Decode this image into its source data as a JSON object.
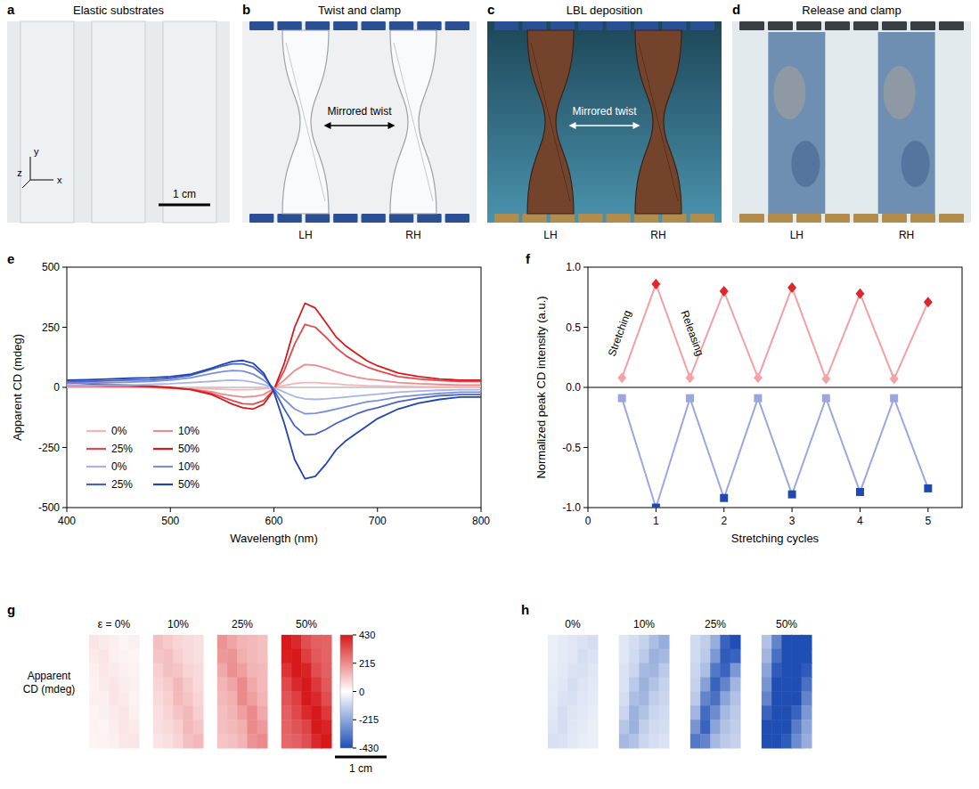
{
  "photos": [
    {
      "panel": "a",
      "title": "Elastic substrates",
      "scale_bar": "1 cm",
      "axes": [
        "x",
        "y",
        "z"
      ]
    },
    {
      "panel": "b",
      "title": "Twist and clamp",
      "annotation": "Mirrored twist",
      "labels": [
        "LH",
        "RH"
      ]
    },
    {
      "panel": "c",
      "title": "LBL deposition",
      "annotation": "Mirrored twist",
      "labels": [
        "LH",
        "RH"
      ]
    },
    {
      "panel": "d",
      "title": "Release and clamp",
      "labels": [
        "LH",
        "RH"
      ]
    }
  ],
  "chart_data": [
    {
      "panel": "e",
      "type": "line",
      "x_label": "Wavelength (nm)",
      "y_label": "Apparent CD (mdeg)",
      "x": [
        400,
        420,
        440,
        460,
        480,
        500,
        520,
        540,
        550,
        560,
        570,
        580,
        590,
        600,
        610,
        620,
        630,
        640,
        650,
        660,
        670,
        680,
        690,
        700,
        720,
        740,
        760,
        780,
        800
      ],
      "xlim": [
        400,
        800
      ],
      "xticks": [
        400,
        500,
        600,
        700,
        800
      ],
      "ylim": [
        -500,
        500
      ],
      "yticks": [
        -500,
        -250,
        0,
        250,
        500
      ],
      "legend": "lower left",
      "series": [
        {
          "name": "0%",
          "color": "#f5b4b6",
          "values": [
            0,
            0,
            0,
            0,
            0,
            -2,
            -4,
            -6,
            -8,
            -10,
            -10,
            -9,
            -6,
            0,
            8,
            16,
            20,
            20,
            17,
            14,
            11,
            9,
            7,
            6,
            4,
            3,
            2,
            2,
            2
          ]
        },
        {
          "name": "10%",
          "color": "#ee8a8d",
          "values": [
            5,
            4,
            3,
            2,
            0,
            -3,
            -8,
            -18,
            -28,
            -35,
            -40,
            -38,
            -30,
            -5,
            30,
            70,
            95,
            92,
            80,
            65,
            52,
            42,
            35,
            30,
            20,
            15,
            12,
            10,
            10
          ]
        },
        {
          "name": "25%",
          "color": "#e4484c",
          "values": [
            10,
            8,
            6,
            5,
            2,
            -2,
            -8,
            -25,
            -40,
            -55,
            -68,
            -70,
            -55,
            -10,
            70,
            180,
            262,
            250,
            210,
            165,
            130,
            105,
            85,
            70,
            45,
            35,
            28,
            25,
            25
          ]
        },
        {
          "name": "50%",
          "color": "#d7191c",
          "values": [
            20,
            15,
            12,
            10,
            5,
            0,
            -10,
            -30,
            -50,
            -70,
            -85,
            -90,
            -70,
            -10,
            100,
            250,
            350,
            330,
            270,
            210,
            170,
            140,
            110,
            90,
            60,
            45,
            35,
            30,
            30
          ]
        },
        {
          "name": "0%",
          "color": "#a9b3e6",
          "values": [
            10,
            8,
            10,
            10,
            12,
            15,
            20,
            25,
            28,
            30,
            28,
            22,
            12,
            0,
            -20,
            -38,
            -48,
            -50,
            -48,
            -44,
            -40,
            -36,
            -32,
            -28,
            -20,
            -15,
            -12,
            -10,
            -10
          ]
        },
        {
          "name": "10%",
          "color": "#7b8ed8",
          "values": [
            20,
            18,
            20,
            22,
            25,
            30,
            40,
            58,
            65,
            70,
            68,
            55,
            30,
            -5,
            -50,
            -90,
            -110,
            -108,
            -100,
            -90,
            -80,
            -70,
            -60,
            -55,
            -40,
            -32,
            -25,
            -20,
            -20
          ]
        },
        {
          "name": "25%",
          "color": "#4863c6",
          "values": [
            25,
            25,
            27,
            30,
            32,
            38,
            50,
            75,
            88,
            98,
            98,
            85,
            50,
            -10,
            -90,
            -160,
            -198,
            -195,
            -175,
            -150,
            -130,
            -110,
            -95,
            -85,
            -60,
            -45,
            -35,
            -30,
            -30
          ]
        },
        {
          "name": "50%",
          "color": "#1f44b0",
          "values": [
            30,
            32,
            35,
            38,
            40,
            45,
            55,
            80,
            95,
            108,
            112,
            100,
            60,
            -20,
            -150,
            -300,
            -380,
            -370,
            -320,
            -260,
            -220,
            -190,
            -160,
            -130,
            -90,
            -65,
            -50,
            -40,
            -40
          ]
        }
      ]
    },
    {
      "panel": "f",
      "type": "line",
      "x_label": "Stretching cycles",
      "y_label": "Normalized peak CD intensity (a.u.)",
      "annotations": [
        "Stretching",
        "Releasing"
      ],
      "x": [
        0.5,
        1,
        1.5,
        2,
        2.5,
        3,
        3.5,
        4,
        4.5,
        5
      ],
      "xlim": [
        0,
        5.5
      ],
      "xticks": [
        0,
        1,
        2,
        3,
        4,
        5
      ],
      "ylim": [
        -1,
        1
      ],
      "yticks": [
        {
          "value": -1,
          "label": "-1.0"
        },
        -0.5,
        {
          "value": 0,
          "label": "0.0"
        },
        0.5,
        {
          "value": 1,
          "label": "1.0"
        }
      ],
      "series": [
        {
          "color": "#f4a0a3",
          "marker": "diamond",
          "colors": [
            "#f5a3a5",
            "#e0262b",
            "#f5a3a5",
            "#e0262b",
            "#f5a3a5",
            "#e0262b",
            "#f5a3a5",
            "#e0262b",
            "#f5a3a5",
            "#e0262b"
          ],
          "values": [
            0.08,
            0.86,
            0.08,
            0.8,
            0.08,
            0.83,
            0.07,
            0.78,
            0.07,
            0.71
          ]
        },
        {
          "color": "#9aa8e0",
          "marker": "square",
          "colors": [
            "#9aa6dd",
            "#2049b0",
            "#9aa6dd",
            "#2049b0",
            "#9aa6dd",
            "#2049b0",
            "#9aa6dd",
            "#2049b0",
            "#9aa6dd",
            "#2049b0"
          ],
          "values": [
            -0.09,
            -1.0,
            -0.09,
            -0.92,
            -0.09,
            -0.89,
            -0.09,
            -0.87,
            -0.09,
            -0.84
          ]
        }
      ]
    },
    {
      "panel": "g",
      "type": "heatmap",
      "row_label": "Apparent CD (mdeg)",
      "maps": [
        {
          "label": "ε = 0%",
          "cells": [
            [
              50,
              40,
              30,
              20,
              30
            ],
            [
              40,
              50,
              30,
              25,
              20
            ],
            [
              30,
              45,
              40,
              30,
              25
            ],
            [
              25,
              40,
              50,
              35,
              30
            ],
            [
              30,
              30,
              50,
              40,
              25
            ],
            [
              20,
              30,
              40,
              50,
              30
            ],
            [
              25,
              20,
              35,
              50,
              40
            ],
            [
              20,
              25,
              30,
              45,
              50
            ]
          ]
        },
        {
          "label": "10%",
          "cells": [
            [
              120,
              100,
              80,
              70,
              60
            ],
            [
              110,
              120,
              90,
              70,
              60
            ],
            [
              90,
              120,
              110,
              80,
              70
            ],
            [
              80,
              100,
              130,
              100,
              70
            ],
            [
              70,
              90,
              130,
              110,
              80
            ],
            [
              60,
              80,
              110,
              130,
              90
            ],
            [
              60,
              70,
              90,
              130,
              110
            ],
            [
              50,
              60,
              80,
              120,
              130
            ]
          ]
        },
        {
          "label": "25%",
          "cells": [
            [
              200,
              170,
              140,
              130,
              120
            ],
            [
              190,
              200,
              150,
              130,
              120
            ],
            [
              160,
              210,
              180,
              140,
              130
            ],
            [
              140,
              170,
              220,
              160,
              130
            ],
            [
              130,
              150,
              220,
              180,
              140
            ],
            [
              120,
              140,
              180,
              220,
              160
            ],
            [
              120,
              130,
              150,
              220,
              190
            ],
            [
              110,
              120,
              140,
              200,
              220
            ]
          ]
        },
        {
          "label": "50%",
          "cells": [
            [
              430,
              400,
              330,
              300,
              290
            ],
            [
              420,
              430,
              360,
              310,
              290
            ],
            [
              380,
              430,
              410,
              330,
              300
            ],
            [
              340,
              400,
              430,
              370,
              310
            ],
            [
              320,
              360,
              430,
              400,
              330
            ],
            [
              300,
              340,
              400,
              430,
              370
            ],
            [
              290,
              320,
              350,
              430,
              410
            ],
            [
              280,
              300,
              330,
              400,
              430
            ]
          ]
        }
      ],
      "colorbar": {
        "range": [
          -430,
          430
        ],
        "ticks": [
          430,
          215,
          0,
          -215,
          -430
        ]
      },
      "scale_bar": "1 cm"
    },
    {
      "panel": "h",
      "type": "heatmap",
      "maps": [
        {
          "label": "0%",
          "cells": [
            [
              -40,
              -50,
              -60,
              -70,
              -80
            ],
            [
              -40,
              -50,
              -60,
              -80,
              -70
            ],
            [
              -45,
              -55,
              -70,
              -75,
              -60
            ],
            [
              -50,
              -60,
              -80,
              -65,
              -55
            ],
            [
              -50,
              -70,
              -75,
              -60,
              -50
            ],
            [
              -55,
              -80,
              -65,
              -55,
              -45
            ],
            [
              -65,
              -80,
              -60,
              -50,
              -40
            ],
            [
              -75,
              -70,
              -55,
              -45,
              -40
            ]
          ]
        },
        {
          "label": "10%",
          "cells": [
            [
              -60,
              -80,
              -110,
              -160,
              -200
            ],
            [
              -60,
              -90,
              -130,
              -190,
              -170
            ],
            [
              -70,
              -100,
              -170,
              -180,
              -130
            ],
            [
              -70,
              -130,
              -190,
              -150,
              -110
            ],
            [
              -80,
              -160,
              -180,
              -120,
              -100
            ],
            [
              -100,
              -190,
              -150,
              -100,
              -90
            ],
            [
              -140,
              -190,
              -120,
              -90,
              -80
            ],
            [
              -170,
              -150,
              -100,
              -80,
              -70
            ]
          ]
        },
        {
          "label": "25%",
          "cells": [
            [
              -90,
              -120,
              -200,
              -380,
              -430
            ],
            [
              -90,
              -130,
              -250,
              -400,
              -380
            ],
            [
              -100,
              -160,
              -330,
              -380,
              -250
            ],
            [
              -110,
              -230,
              -380,
              -300,
              -180
            ],
            [
              -130,
              -300,
              -350,
              -220,
              -150
            ],
            [
              -180,
              -360,
              -280,
              -170,
              -130
            ],
            [
              -260,
              -380,
              -220,
              -150,
              -120
            ],
            [
              -330,
              -300,
              -170,
              -130,
              -110
            ]
          ]
        },
        {
          "label": "50%",
          "cells": [
            [
              -150,
              -300,
              -430,
              -430,
              -430
            ],
            [
              -180,
              -350,
              -430,
              -430,
              -430
            ],
            [
              -220,
              -400,
              -430,
              -430,
              -400
            ],
            [
              -260,
              -430,
              -430,
              -430,
              -350
            ],
            [
              -300,
              -430,
              -430,
              -430,
              -300
            ],
            [
              -380,
              -430,
              -430,
              -380,
              -250
            ],
            [
              -430,
              -430,
              -430,
              -320,
              -220
            ],
            [
              -430,
              -430,
              -400,
              -280,
              -200
            ]
          ]
        }
      ]
    }
  ]
}
